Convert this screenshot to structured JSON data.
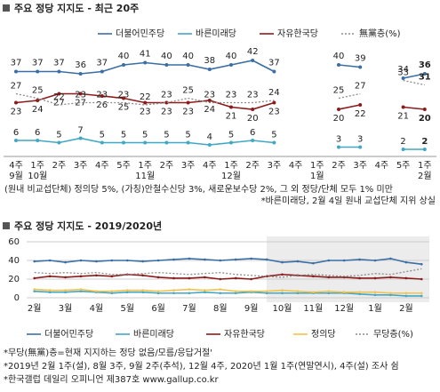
{
  "chart_data": [
    {
      "type": "line",
      "title": "주요 정당 지지도 - 최근 20주",
      "categories": [
        [
          "4주",
          "9월"
        ],
        [
          "1주",
          "10월"
        ],
        [
          "2주"
        ],
        [
          "3주"
        ],
        [
          "4주"
        ],
        [
          "5주"
        ],
        [
          "1주",
          "11월"
        ],
        [
          "2주"
        ],
        [
          "3주"
        ],
        [
          "4주"
        ],
        [
          "1주",
          "12월"
        ],
        [
          "2주"
        ],
        [
          "3주"
        ],
        [
          "4주"
        ],
        [
          "1주",
          "1월"
        ],
        [
          "2주"
        ],
        [
          "3주"
        ],
        [
          "4주"
        ],
        [
          "5주"
        ],
        [
          "1주",
          "2월"
        ]
      ],
      "series": [
        {
          "name": "더불어민주당",
          "color": "#3a6ea5",
          "values": [
            37,
            37,
            37,
            36,
            37,
            40,
            41,
            40,
            40,
            38,
            40,
            42,
            37,
            null,
            null,
            40,
            39,
            null,
            34,
            36
          ]
        },
        {
          "name": "바른미래당",
          "color": "#41a7c4",
          "values": [
            6,
            6,
            5,
            7,
            5,
            5,
            5,
            5,
            5,
            4,
            5,
            6,
            5,
            null,
            null,
            3,
            3,
            null,
            2,
            2
          ]
        },
        {
          "name": "자유한국당",
          "color": "#8b1c1c",
          "values": [
            23,
            24,
            27,
            27,
            26,
            25,
            23,
            23,
            23,
            24,
            21,
            20,
            23,
            null,
            null,
            20,
            22,
            null,
            21,
            20
          ]
        },
        {
          "name": "無黨층(%)",
          "color": "#8c8c8c",
          "style": "dotted",
          "values": [
            27,
            25,
            22,
            23,
            23,
            23,
            22,
            23,
            25,
            23,
            23,
            23,
            24,
            null,
            null,
            25,
            27,
            null,
            33,
            31
          ]
        }
      ],
      "notes": [
        "(원내 비교섭단체) 정의당 5%, (가칭)안철수신당 3%, 새로운보수당 2%, 그 외 정당/단체 모두 1% 미만",
        "*바른미래당, 2월 4일 원내 교섭단체 지위 상실"
      ]
    },
    {
      "type": "line",
      "title": "주요 정당 지지도 - 2019/2020년",
      "categories": [
        "2월",
        null,
        "3월",
        null,
        "4월",
        null,
        "5월",
        null,
        "6월",
        null,
        "7월",
        null,
        "8월",
        null,
        "9월",
        null,
        "10월",
        null,
        "11월",
        null,
        "12월",
        null,
        "1월",
        null,
        "2월",
        null
      ],
      "ylim": [
        0,
        60
      ],
      "yticks": [
        0,
        20,
        40,
        60
      ],
      "grid": true,
      "series": [
        {
          "name": "더불어민주당",
          "color": "#3a6ea5",
          "values": [
            39,
            40,
            38,
            40,
            39,
            40,
            40,
            39,
            40,
            41,
            42,
            41,
            40,
            41,
            42,
            41,
            38,
            39,
            37,
            40,
            40,
            41,
            40,
            42,
            38,
            36
          ]
        },
        {
          "name": "바른미래당",
          "color": "#41a7c4",
          "values": [
            7,
            6,
            6,
            7,
            6,
            5,
            6,
            6,
            5,
            5,
            5,
            6,
            5,
            5,
            6,
            5,
            5,
            5,
            5,
            5,
            5,
            4,
            3,
            3,
            2,
            2
          ]
        },
        {
          "name": "자유한국당",
          "color": "#8b1c1c",
          "values": [
            21,
            23,
            22,
            23,
            24,
            23,
            25,
            24,
            22,
            21,
            21,
            22,
            20,
            21,
            20,
            23,
            25,
            24,
            23,
            22,
            22,
            21,
            21,
            22,
            21,
            20
          ]
        },
        {
          "name": "정의당",
          "color": "#f2c24f",
          "values": [
            9,
            8,
            8,
            9,
            7,
            7,
            8,
            8,
            7,
            8,
            9,
            8,
            9,
            7,
            7,
            7,
            8,
            7,
            6,
            7,
            6,
            6,
            6,
            5,
            5,
            5
          ]
        },
        {
          "name": "무당층(%)",
          "color": "#8c8c8c",
          "style": "dotted",
          "values": [
            27,
            26,
            27,
            26,
            27,
            25,
            25,
            26,
            27,
            26,
            25,
            26,
            27,
            25,
            24,
            23,
            22,
            24,
            25,
            24,
            23,
            24,
            26,
            25,
            28,
            31
          ]
        }
      ],
      "notes": [
        "*무당(無黨)층=현재 지지하는 정당 없음/모름/응답거절'",
        "*2019년 2월 1주(설), 8월 3주, 9월 2주(추석), 12월 4주, 2020년 1월 1주(연말연시), 4주(설) 조사 쉼",
        "*한국갤럽 데일리 오피니언 제387호 www.gallup.co.kr"
      ]
    }
  ]
}
